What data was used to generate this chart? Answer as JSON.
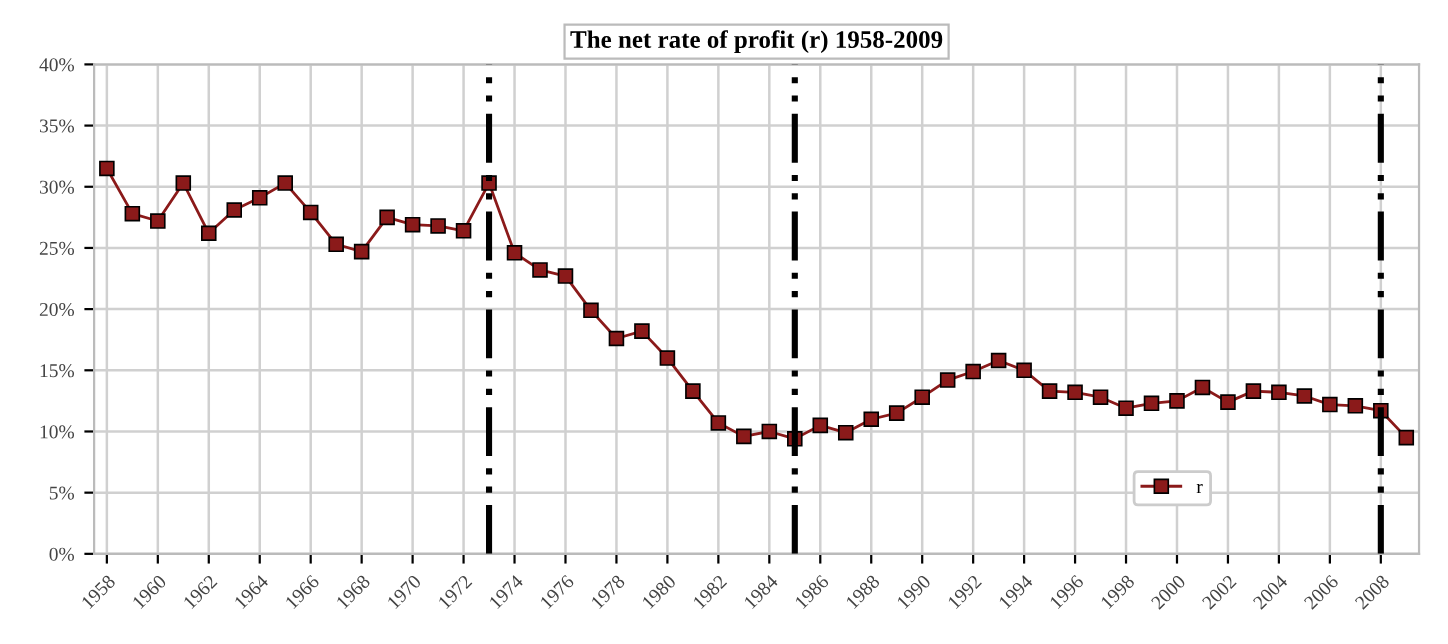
{
  "chart_data": {
    "type": "line",
    "title": "The net rate of profit (r) 1958-2009",
    "x": [
      1958,
      1959,
      1960,
      1961,
      1962,
      1963,
      1964,
      1965,
      1966,
      1967,
      1968,
      1969,
      1970,
      1971,
      1972,
      1973,
      1974,
      1975,
      1976,
      1977,
      1978,
      1979,
      1980,
      1981,
      1982,
      1983,
      1984,
      1985,
      1986,
      1987,
      1988,
      1989,
      1990,
      1991,
      1992,
      1993,
      1994,
      1995,
      1996,
      1997,
      1998,
      1999,
      2000,
      2001,
      2002,
      2003,
      2004,
      2005,
      2006,
      2007,
      2008,
      2009
    ],
    "series": [
      {
        "name": "r",
        "color": "#8b1a1a",
        "values": [
          31.5,
          27.8,
          27.2,
          30.3,
          26.2,
          28.1,
          29.1,
          30.3,
          27.9,
          25.3,
          24.7,
          27.5,
          26.9,
          26.8,
          26.4,
          30.3,
          24.6,
          23.2,
          22.7,
          19.9,
          17.6,
          18.2,
          16.0,
          13.3,
          10.7,
          9.6,
          10.0,
          9.4,
          10.5,
          9.9,
          11.0,
          11.5,
          12.8,
          14.2,
          14.9,
          15.8,
          15.0,
          13.3,
          13.2,
          12.8,
          11.9,
          12.3,
          12.5,
          13.6,
          12.4,
          13.3,
          13.2,
          12.9,
          12.2,
          12.1,
          11.7,
          9.5
        ]
      }
    ],
    "xlim": [
      1957.5,
      2009.5
    ],
    "xticks": [
      1958,
      1960,
      1962,
      1964,
      1966,
      1968,
      1970,
      1972,
      1974,
      1976,
      1978,
      1980,
      1982,
      1984,
      1986,
      1988,
      1990,
      1992,
      1994,
      1996,
      1998,
      2000,
      2002,
      2004,
      2006,
      2008
    ],
    "ylim": [
      0,
      40
    ],
    "yticks": [
      {
        "value": 0,
        "label": "0%"
      },
      {
        "value": 5,
        "label": "5%"
      },
      {
        "value": 10,
        "label": "10%"
      },
      {
        "value": 15,
        "label": "15%"
      },
      {
        "value": 20,
        "label": "20%"
      },
      {
        "value": 25,
        "label": "25%"
      },
      {
        "value": 30,
        "label": "30%"
      },
      {
        "value": 35,
        "label": "35%"
      },
      {
        "value": 40,
        "label": "40%"
      }
    ],
    "ref_lines": [
      {
        "axis": "x",
        "value": 1973,
        "color": "#000000",
        "line_style": "dashed"
      },
      {
        "axis": "x",
        "value": 1985,
        "color": "#000000",
        "line_style": "dashed"
      },
      {
        "axis": "x",
        "value": 2008,
        "color": "#000000",
        "line_style": "dashed"
      }
    ],
    "grid": true,
    "legend": "bottom right",
    "marker": "square",
    "line_style": "solid"
  }
}
